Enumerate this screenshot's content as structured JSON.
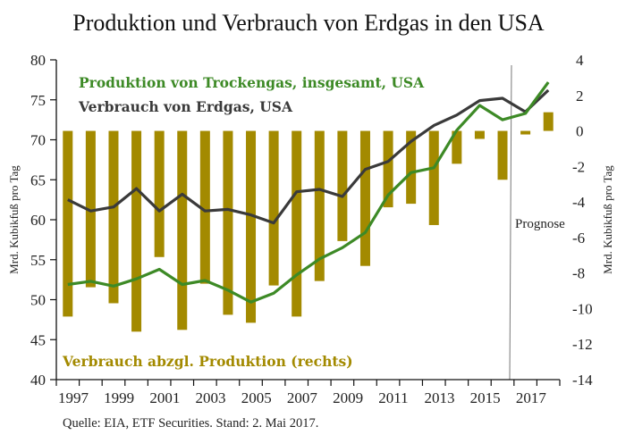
{
  "chart_data": {
    "type": "bar+line",
    "title": "Produktion und Verbrauch von Erdgas in den USA",
    "categories": [
      "1997",
      "1998",
      "1999",
      "2000",
      "2001",
      "2002",
      "2003",
      "2004",
      "2005",
      "2006",
      "2007",
      "2008",
      "2009",
      "2010",
      "2011",
      "2012",
      "2013",
      "2014",
      "2015",
      "2016",
      "2017",
      "2018"
    ],
    "x_tick_labels": [
      "1997",
      "1999",
      "2001",
      "2003",
      "2005",
      "2007",
      "2009",
      "2011",
      "2013",
      "2015",
      "2017"
    ],
    "y_left": {
      "label": "Mrd. Kubikfuß pro Tag",
      "range": [
        40,
        80
      ],
      "ticks": [
        "40",
        "45",
        "50",
        "55",
        "60",
        "65",
        "70",
        "75",
        "80"
      ]
    },
    "y_right": {
      "label": "Mrd. Kubikfuß pro Tag",
      "range": [
        -14,
        4
      ],
      "ticks": [
        "-14",
        "-12",
        "-10",
        "-8",
        "-6",
        "-4",
        "-2",
        "0",
        "2",
        "4"
      ]
    },
    "series": [
      {
        "name": "Produktion von Trockengas, insgesamt, USA",
        "type": "line",
        "axis": "left",
        "color": "#3d8a26",
        "values": [
          51.9,
          52.3,
          51.7,
          52.6,
          53.8,
          51.9,
          52.4,
          51.2,
          49.7,
          50.8,
          53.1,
          55.1,
          56.5,
          58.4,
          63.1,
          65.9,
          66.5,
          71.2,
          74.3,
          72.5,
          73.3,
          77.2
        ]
      },
      {
        "name": "Verbrauch von Erdgas, USA",
        "type": "line",
        "axis": "left",
        "color": "#3a3a3a",
        "values": [
          62.5,
          61.1,
          61.6,
          63.9,
          61.1,
          63.2,
          61.1,
          61.3,
          60.6,
          59.6,
          63.5,
          63.8,
          62.9,
          66.3,
          67.3,
          69.8,
          71.8,
          73.1,
          74.9,
          75.2,
          73.5,
          76.2
        ]
      },
      {
        "name": "Verbrauch abzgl. Produktion (rechts)",
        "type": "bar",
        "axis": "right",
        "color": "#a38a00",
        "values": [
          -10.45,
          -8.8,
          -9.7,
          -11.3,
          -7.1,
          -11.2,
          -8.6,
          -10.35,
          -10.8,
          -8.7,
          -10.45,
          -8.45,
          -6.2,
          -7.6,
          -4.3,
          -4.1,
          -5.3,
          -1.85,
          -0.45,
          -2.75,
          -0.2,
          1.05
        ]
      }
    ],
    "annotations": [
      {
        "text": "Prognose",
        "at_category": "2016.8"
      }
    ],
    "legend_placement": "inside-top-left and bottom-left",
    "grid": false
  },
  "source": "Quelle: EIA, ETF Securities. Stand: 2. Mai 2017."
}
